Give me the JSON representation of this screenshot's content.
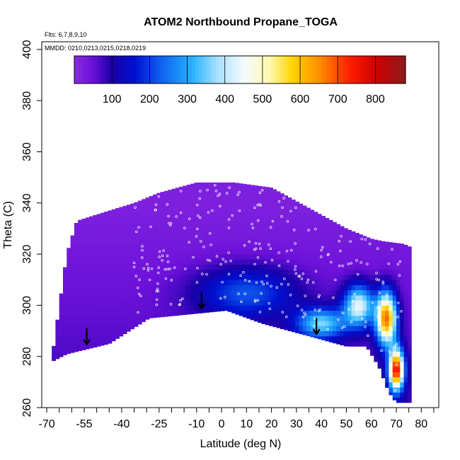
{
  "chart_data": {
    "type": "heatmap",
    "title": "ATOM2 Northbound Propane_TOGA",
    "flights_note": "Flts: 6,7,8,9,10",
    "dates_note": "MMDD: 0210,0213,0215,0218,0219",
    "xlabel": "Latitude (deg N)",
    "ylabel": "Theta (C)",
    "xlim": [
      -72,
      87
    ],
    "ylim": [
      260,
      403
    ],
    "x_ticks": [
      -70,
      -55,
      -40,
      -25,
      -10,
      0,
      10,
      20,
      30,
      40,
      50,
      60,
      70,
      80
    ],
    "x_minor_ticks": [
      -65,
      -60,
      -50,
      -45,
      -35,
      -30,
      -20,
      -15,
      -5,
      5,
      15,
      25,
      35,
      45,
      55,
      65,
      75,
      85
    ],
    "y_ticks": [
      260,
      280,
      300,
      320,
      340,
      360,
      380,
      400
    ],
    "colorbar": {
      "min": 0,
      "max": 880,
      "ticks": [
        100,
        200,
        300,
        400,
        500,
        600,
        700,
        800
      ],
      "colors": [
        {
          "v": 0,
          "c": "#8a2be2"
        },
        {
          "v": 50,
          "c": "#6a10d8"
        },
        {
          "v": 100,
          "c": "#1a00a8"
        },
        {
          "v": 160,
          "c": "#0010d0"
        },
        {
          "v": 230,
          "c": "#1060f0"
        },
        {
          "v": 310,
          "c": "#20b0ff"
        },
        {
          "v": 380,
          "c": "#a8e0ff"
        },
        {
          "v": 450,
          "c": "#f4fbff"
        },
        {
          "v": 520,
          "c": "#fff8b0"
        },
        {
          "v": 580,
          "c": "#ffd400"
        },
        {
          "v": 650,
          "c": "#ff9000"
        },
        {
          "v": 730,
          "c": "#ff2000"
        },
        {
          "v": 800,
          "c": "#d00000"
        },
        {
          "v": 880,
          "c": "#8b1a1a"
        }
      ]
    },
    "field": {
      "lat_range": [
        -68,
        75
      ],
      "lower_boundary": [
        [
          -68,
          278
        ],
        [
          -62,
          281
        ],
        [
          -45,
          285
        ],
        [
          -29,
          295
        ],
        [
          2,
          298
        ],
        [
          16,
          293
        ],
        [
          35,
          288
        ],
        [
          50,
          284
        ],
        [
          58,
          284
        ],
        [
          63,
          276
        ],
        [
          67,
          266
        ],
        [
          70,
          262
        ],
        [
          74,
          262
        ]
      ],
      "upper_boundary": [
        [
          -68,
          279
        ],
        [
          -62,
          320
        ],
        [
          -58,
          333
        ],
        [
          -45,
          337
        ],
        [
          -35,
          340
        ],
        [
          -25,
          344
        ],
        [
          -10,
          348
        ],
        [
          5,
          348
        ],
        [
          20,
          346
        ],
        [
          35,
          338
        ],
        [
          50,
          330
        ],
        [
          60,
          326
        ],
        [
          65,
          325
        ],
        [
          73,
          324
        ],
        [
          75,
          323
        ]
      ],
      "hotspots": [
        {
          "lat": 70,
          "theta": 275,
          "value": 700,
          "slat": 3,
          "sth": 8
        },
        {
          "lat": 66,
          "theta": 295,
          "value": 620,
          "slat": 4,
          "sth": 10
        },
        {
          "lat": 55,
          "theta": 300,
          "value": 380,
          "slat": 6,
          "sth": 8
        },
        {
          "lat": 40,
          "theta": 293,
          "value": 300,
          "slat": 10,
          "sth": 6
        },
        {
          "lat": 10,
          "theta": 305,
          "value": 170,
          "slat": 20,
          "sth": 10
        }
      ]
    },
    "arrows_lat": [
      -54,
      -8,
      38
    ],
    "arrows_theta": [
      288,
      302,
      292
    ]
  }
}
